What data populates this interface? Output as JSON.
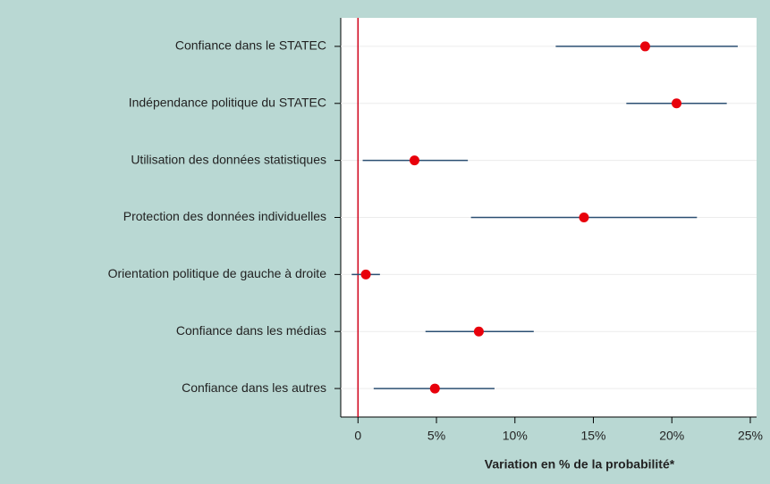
{
  "chart_data": {
    "type": "coefplot",
    "xlabel": "Variation en % de la probabilité*",
    "categories": [
      "Confiance dans le STATEC",
      "Indépendance politique du STATEC",
      "Utilisation des données statistiques",
      "Protection des données individuelles",
      "Orientation politique de gauche à droite",
      "Confiance dans les médias",
      "Confiance dans les autres"
    ],
    "series": [
      {
        "color": "#e8000b",
        "bar_color": "#2b4f72",
        "values": [
          18.3,
          20.3,
          3.6,
          14.4,
          0.5,
          7.7,
          4.9
        ],
        "lower": [
          12.6,
          17.1,
          0.3,
          7.2,
          -0.4,
          4.3,
          1.0
        ],
        "upper": [
          24.2,
          23.5,
          7.0,
          21.6,
          1.4,
          11.2,
          8.7
        ]
      }
    ],
    "xlim": [
      -1.1,
      25.4
    ],
    "xticks": [
      0,
      {
        "value": 5,
        "label": "5%"
      },
      {
        "value": 10,
        "label": "10%"
      },
      {
        "value": 15,
        "label": "15%"
      },
      {
        "value": 20,
        "label": "20%"
      },
      {
        "value": 25,
        "label": "25%"
      }
    ],
    "xline": {
      "value": 0,
      "color": "#d0021b"
    },
    "grid": true
  }
}
